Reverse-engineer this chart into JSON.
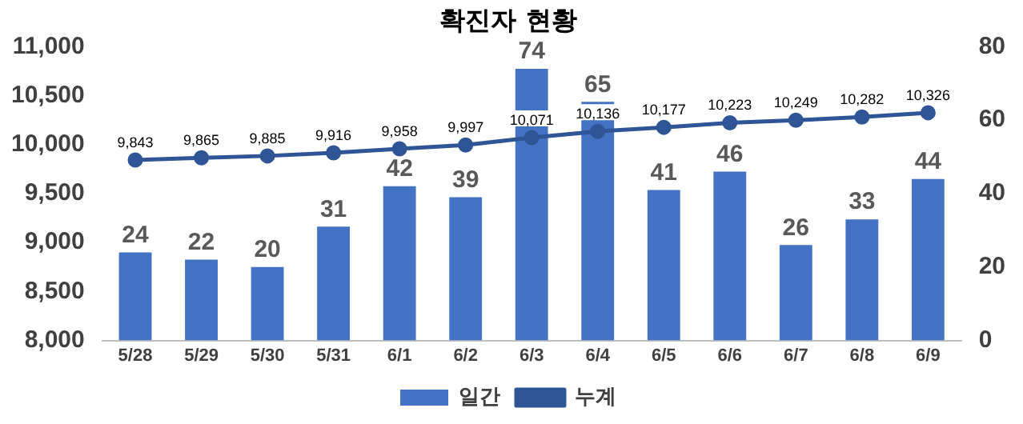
{
  "chart_data": {
    "type": "bar",
    "title": "확진자 현황",
    "categories": [
      "5/28",
      "5/29",
      "5/30",
      "5/31",
      "6/1",
      "6/2",
      "6/3",
      "6/4",
      "6/5",
      "6/6",
      "6/7",
      "6/8",
      "6/9"
    ],
    "series": [
      {
        "name": "일간",
        "axis": "y2",
        "color": "#4472c4",
        "values": [
          24,
          22,
          20,
          31,
          42,
          39,
          74,
          65,
          41,
          46,
          26,
          33,
          44
        ],
        "value_labels": [
          "24",
          "22",
          "20",
          "31",
          "42",
          "39",
          "74",
          "65",
          "41",
          "46",
          "26",
          "33",
          "44"
        ]
      },
      {
        "name": "누계",
        "type": "line",
        "color": "#2f5597",
        "marker": "circle",
        "values": [
          9843,
          9865,
          9885,
          9916,
          9958,
          9997,
          10071,
          10136,
          10177,
          10223,
          10249,
          10282,
          10326
        ],
        "value_labels": [
          "9,843",
          "9,865",
          "9,885",
          "9,916",
          "9,958",
          "9,997",
          "10,071",
          "10,136",
          "10,177",
          "10,223",
          "10,249",
          "10,282",
          "10,326"
        ]
      }
    ],
    "ylim": [
      8000,
      11000
    ],
    "yticks": [
      {
        "value": 8000,
        "label": "8,000"
      },
      {
        "value": 8500,
        "label": "8,500"
      },
      {
        "value": 9000,
        "label": "9,000"
      },
      {
        "value": 9500,
        "label": "9,500"
      },
      {
        "value": 10000,
        "label": "10,000"
      },
      {
        "value": 10500,
        "label": "10,500"
      },
      {
        "value": 11000,
        "label": "11,000"
      }
    ],
    "y2lim": [
      0,
      80
    ],
    "y2ticks": [
      0,
      20,
      40,
      60,
      80
    ],
    "grid": false,
    "legend": "bottom"
  }
}
